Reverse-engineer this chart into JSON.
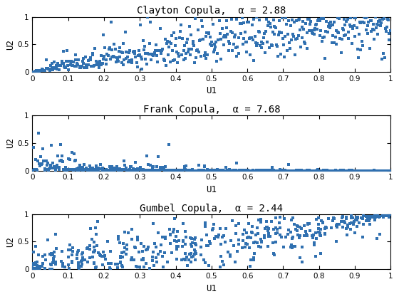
{
  "titles": [
    "Clayton Copula,  α = 2.88",
    "Frank Copula,  α = 7.68",
    "Gumbel Copula,  α = 2.44"
  ],
  "xlabel": "U1",
  "ylabel": "U2",
  "n_samples": 500,
  "clayton_alpha": 2.88,
  "frank_alpha": 7.68,
  "gumbel_alpha": 2.44,
  "scatter_color": "#3070B0",
  "marker": "s",
  "marker_size": 3.5,
  "xlim": [
    0,
    1
  ],
  "ylim": [
    0,
    1
  ],
  "xticks": [
    0,
    0.1,
    0.2,
    0.3,
    0.4,
    0.5,
    0.6,
    0.7,
    0.8,
    0.9,
    1.0
  ],
  "yticks": [
    0,
    0.5,
    1
  ],
  "figsize": [
    5.6,
    4.2
  ],
  "dpi": 100,
  "seed": 12345
}
